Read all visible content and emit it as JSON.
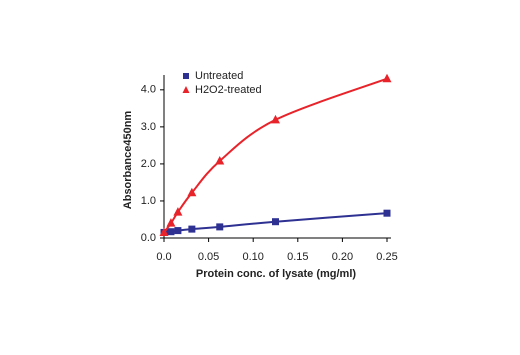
{
  "chart_data": {
    "type": "line",
    "x_label": "Protein conc. of lysate (mg/ml)",
    "y_label": "Absorbance450nm",
    "xlim": [
      0,
      0.25
    ],
    "ylim": [
      0,
      4.4
    ],
    "xticks": [
      {
        "value": 0,
        "label": "0.0"
      },
      0.05,
      {
        "value": 0.1,
        "label": "0.10"
      },
      0.15,
      {
        "value": 0.2,
        "label": "0.20"
      },
      0.25
    ],
    "yticks": [
      {
        "value": 0,
        "label": "0.0"
      },
      {
        "value": 1,
        "label": "1.0"
      },
      {
        "value": 2,
        "label": "2.0"
      },
      {
        "value": 3,
        "label": "3.0"
      },
      {
        "value": 4,
        "label": "4.0"
      }
    ],
    "series": [
      {
        "name": "Untreated",
        "color": "#2e3192",
        "marker": "square",
        "x": [
          0,
          0.0078,
          0.0156,
          0.03125,
          0.0625,
          0.125,
          0.25
        ],
        "values": [
          0.15,
          0.17,
          0.2,
          0.24,
          0.3,
          0.44,
          0.67
        ]
      },
      {
        "name": "H2O2-treated",
        "color": "#e8232a",
        "marker": "triangle",
        "x": [
          0,
          0.0078,
          0.0156,
          0.03125,
          0.0625,
          0.125,
          0.25
        ],
        "values": [
          0.15,
          0.4,
          0.7,
          1.22,
          2.08,
          3.19,
          4.3
        ]
      }
    ]
  }
}
